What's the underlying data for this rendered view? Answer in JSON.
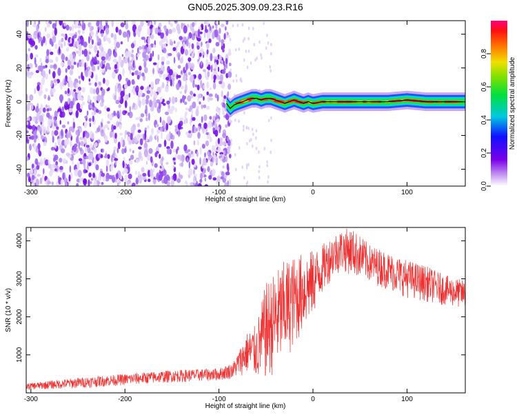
{
  "title": "GN05.2025.309.09.23.R16",
  "colors": {
    "snr_line": "#f03030",
    "ridge_line": "#000000",
    "axis": "#000000",
    "background": "#ffffff"
  },
  "chart_data": [
    {
      "type": "heatmap",
      "name": "spectrogram",
      "xlabel": "Height of straight line (km)",
      "ylabel": "Frequency (Hz)",
      "xlim": [
        -305,
        162
      ],
      "ylim": [
        -50,
        48
      ],
      "xticks": [
        -300,
        -200,
        -100,
        0,
        100
      ],
      "yticks": [
        -40,
        -20,
        0,
        20,
        40
      ],
      "xtick_labels": [
        "-300",
        "-200",
        "-100",
        "0",
        "100"
      ],
      "ytick_labels": [
        "-40",
        "-20",
        "0",
        "20",
        "40"
      ],
      "noise_region_x": [
        -305,
        -88
      ],
      "ridge": {
        "x": [
          -92,
          -88,
          -84,
          -80,
          -75,
          -70,
          -65,
          -60,
          -55,
          -50,
          -45,
          -40,
          -35,
          -30,
          -25,
          -20,
          -15,
          -10,
          -5,
          0,
          10,
          20,
          40,
          60,
          80,
          100,
          120,
          140,
          162
        ],
        "y": [
          -1,
          -4,
          -2,
          -1,
          0,
          1,
          2,
          2,
          1,
          2,
          2,
          1,
          0,
          -1,
          0,
          1,
          0,
          -1,
          0,
          -1,
          0,
          0,
          0,
          0,
          0,
          1,
          0,
          0,
          0
        ]
      },
      "colorbar": {
        "label": "Normalized spectral amplitude",
        "range": [
          0.0,
          1.0
        ],
        "ticks": [
          0.0,
          0.2,
          0.4,
          0.6,
          0.8
        ],
        "tick_labels": [
          "0.0",
          "0.2",
          "0.4",
          "0.6",
          "0.8"
        ]
      }
    },
    {
      "type": "line",
      "name": "snr",
      "xlabel": "Height of straight line (km)",
      "ylabel": "SNR (10 * v/v)",
      "xlim": [
        -305,
        162
      ],
      "ylim": [
        0,
        4350
      ],
      "xticks": [
        -300,
        -200,
        -100,
        0,
        100
      ],
      "yticks": [
        1000,
        2000,
        3000,
        4000
      ],
      "xtick_labels": [
        "-300",
        "-200",
        "-100",
        "0",
        "100"
      ],
      "ytick_labels": [
        "1000",
        "2000",
        "3000",
        "4000"
      ],
      "envelope": {
        "x": [
          -305,
          -250,
          -200,
          -150,
          -100,
          -85,
          -70,
          -60,
          -50,
          -40,
          -30,
          -20,
          -10,
          0,
          10,
          20,
          30,
          40,
          50,
          60,
          80,
          100,
          120,
          140,
          162
        ],
        "low": [
          80,
          120,
          200,
          270,
          320,
          380,
          500,
          350,
          300,
          500,
          800,
          1200,
          1600,
          2000,
          2600,
          3000,
          3200,
          3100,
          3000,
          2900,
          2700,
          2500,
          2400,
          2300,
          2200
        ],
        "high": [
          250,
          400,
          500,
          600,
          650,
          800,
          1600,
          1800,
          2900,
          3200,
          3500,
          3600,
          3700,
          3750,
          3900,
          4150,
          4300,
          4350,
          4150,
          3900,
          3700,
          3500,
          3350,
          3100,
          2950
        ]
      }
    }
  ]
}
